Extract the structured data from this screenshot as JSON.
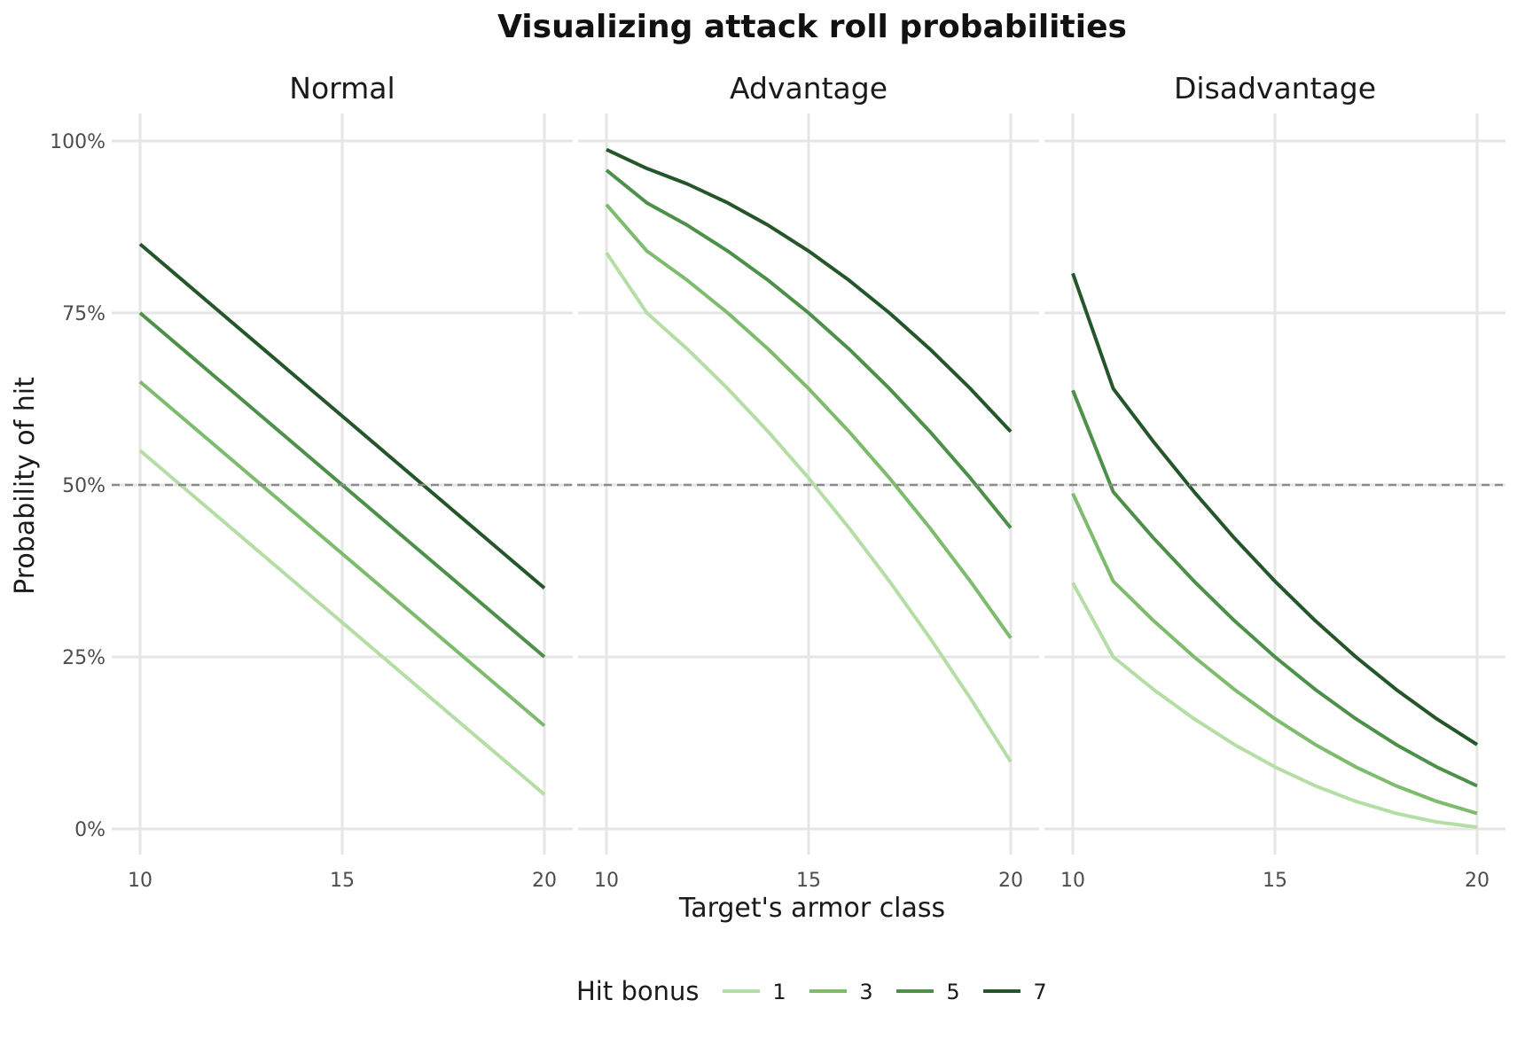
{
  "chart_data": {
    "type": "line",
    "title": "Visualizing attack roll probabilities",
    "xlabel": "Target's armor class",
    "ylabel": "Probability of hit",
    "x_ticks": [
      10,
      15,
      20
    ],
    "y_ticks": [
      0,
      0.25,
      0.5,
      0.75,
      1.0
    ],
    "y_tick_labels": [
      "0%",
      "25%",
      "50%",
      "75%",
      "100%"
    ],
    "xlim": [
      10,
      20
    ],
    "ylim": [
      0,
      1
    ],
    "reference_line": {
      "y": 0.5,
      "style": "dashed"
    },
    "legend": {
      "title": "Hit bonus",
      "position": "bottom",
      "entries": [
        {
          "label": "1",
          "color": "#b5dea6"
        },
        {
          "label": "3",
          "color": "#7dbb6d"
        },
        {
          "label": "5",
          "color": "#4d904a"
        },
        {
          "label": "7",
          "color": "#25562a"
        }
      ]
    },
    "x": [
      10,
      11,
      12,
      13,
      14,
      15,
      16,
      17,
      18,
      19,
      20
    ],
    "facets": [
      {
        "name": "Normal",
        "series": [
          {
            "name": "1",
            "values": [
              0.55,
              0.5,
              0.45,
              0.4,
              0.35,
              0.3,
              0.25,
              0.2,
              0.15,
              0.1,
              0.05
            ]
          },
          {
            "name": "3",
            "values": [
              0.65,
              0.6,
              0.55,
              0.5,
              0.45,
              0.4,
              0.35,
              0.3,
              0.25,
              0.2,
              0.15
            ]
          },
          {
            "name": "5",
            "values": [
              0.75,
              0.7,
              0.65,
              0.6,
              0.55,
              0.5,
              0.45,
              0.4,
              0.35,
              0.3,
              0.25
            ]
          },
          {
            "name": "7",
            "values": [
              0.85,
              0.8,
              0.75,
              0.7,
              0.65,
              0.6,
              0.55,
              0.5,
              0.45,
              0.4,
              0.35
            ]
          }
        ]
      },
      {
        "name": "Advantage",
        "series": [
          {
            "name": "1",
            "values": [
              0.8375,
              0.75,
              0.6975,
              0.64,
              0.5775,
              0.51,
              0.4375,
              0.36,
              0.2775,
              0.19,
              0.0975
            ]
          },
          {
            "name": "3",
            "values": [
              0.9075,
              0.84,
              0.7975,
              0.75,
              0.6975,
              0.64,
              0.5775,
              0.51,
              0.4375,
              0.36,
              0.2775
            ]
          },
          {
            "name": "5",
            "values": [
              0.9575,
              0.91,
              0.8775,
              0.84,
              0.7975,
              0.75,
              0.6975,
              0.64,
              0.5775,
              0.51,
              0.4375
            ]
          },
          {
            "name": "7",
            "values": [
              0.9875,
              0.96,
              0.9375,
              0.91,
              0.8775,
              0.84,
              0.7975,
              0.75,
              0.6975,
              0.64,
              0.5775
            ]
          }
        ]
      },
      {
        "name": "Disadvantage",
        "series": [
          {
            "name": "1",
            "values": [
              0.3575,
              0.25,
              0.2025,
              0.16,
              0.1225,
              0.09,
              0.0625,
              0.04,
              0.0225,
              0.01,
              0.0025
            ]
          },
          {
            "name": "3",
            "values": [
              0.4875,
              0.36,
              0.3025,
              0.25,
              0.2025,
              0.16,
              0.1225,
              0.09,
              0.0625,
              0.04,
              0.0225
            ]
          },
          {
            "name": "5",
            "values": [
              0.6375,
              0.49,
              0.4225,
              0.36,
              0.3025,
              0.25,
              0.2025,
              0.16,
              0.1225,
              0.09,
              0.0625
            ]
          },
          {
            "name": "7",
            "values": [
              0.8075,
              0.64,
              0.5625,
              0.49,
              0.4225,
              0.36,
              0.3025,
              0.25,
              0.2025,
              0.16,
              0.1225
            ]
          }
        ]
      }
    ]
  }
}
